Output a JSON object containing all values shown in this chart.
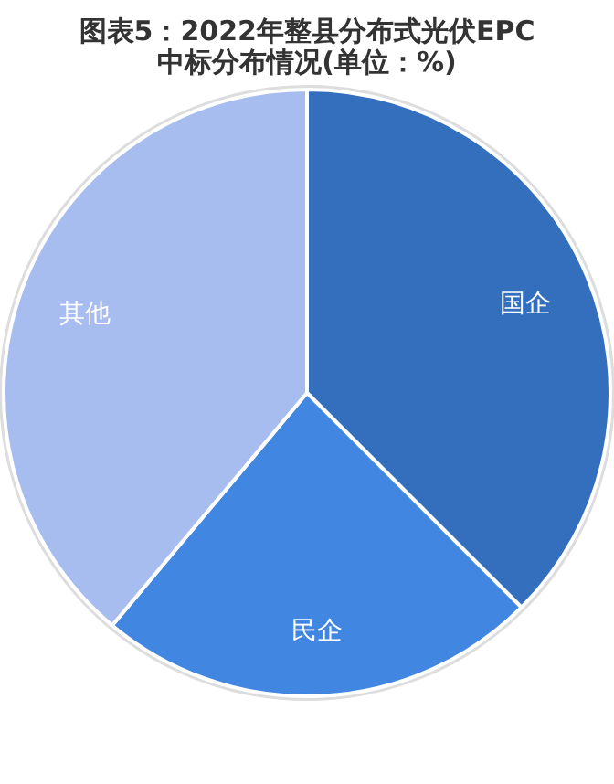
{
  "chart_data": {
    "type": "pie",
    "title": "图表5：2022年整县分布式光伏EPC中标分布情况(单位：%)",
    "categories": [
      "国企",
      "民企",
      "其他"
    ],
    "values": [
      37.5,
      23.6,
      38.9
    ],
    "colors": [
      "#346fbe",
      "#4186e0",
      "#a8bdef"
    ],
    "legend": false
  }
}
